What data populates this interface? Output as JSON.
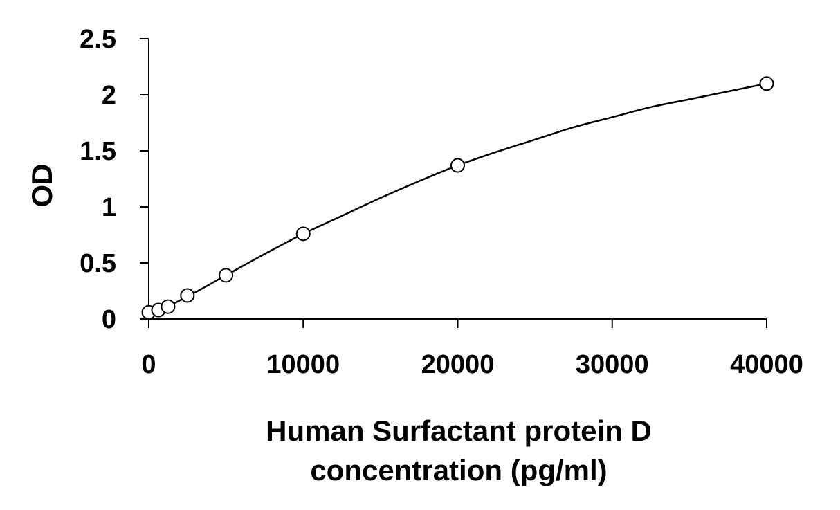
{
  "chart_data": {
    "type": "scatter",
    "title": "",
    "xlabel_lines": [
      "Human Surfactant protein D",
      "concentration (pg/ml)"
    ],
    "ylabel": "OD",
    "xlim": [
      0,
      40000
    ],
    "ylim": [
      0,
      2.5
    ],
    "x_ticks": [
      0,
      10000,
      20000,
      30000,
      40000
    ],
    "x_tick_labels": [
      "0",
      "10000",
      "20000",
      "30000",
      "40000"
    ],
    "y_ticks": [
      0,
      0.5,
      1,
      1.5,
      2,
      2.5
    ],
    "y_tick_labels": [
      "0",
      "0.5",
      "1",
      "1.5",
      "2",
      "2.5"
    ],
    "grid": false,
    "legend": "none",
    "series": [
      {
        "marker": "open-circle",
        "x": [
          0,
          625,
          1250,
          2500,
          5000,
          10000,
          20000,
          40000
        ],
        "y": [
          0.06,
          0.08,
          0.11,
          0.21,
          0.39,
          0.76,
          1.37,
          2.1
        ]
      }
    ],
    "fit_curve": {
      "type": "smooth-fit",
      "x": [
        0,
        2500,
        5000,
        7500,
        10000,
        12500,
        15000,
        17500,
        20000,
        22500,
        25000,
        27500,
        30000,
        32500,
        35000,
        37500,
        40000
      ],
      "y": [
        0.03,
        0.2,
        0.39,
        0.58,
        0.76,
        0.92,
        1.08,
        1.23,
        1.37,
        1.49,
        1.6,
        1.71,
        1.8,
        1.89,
        1.96,
        2.03,
        2.1
      ]
    },
    "colors": {
      "axis": "#000000",
      "marker_stroke": "#000000",
      "marker_fill": "#ffffff",
      "curve": "#000000"
    }
  }
}
